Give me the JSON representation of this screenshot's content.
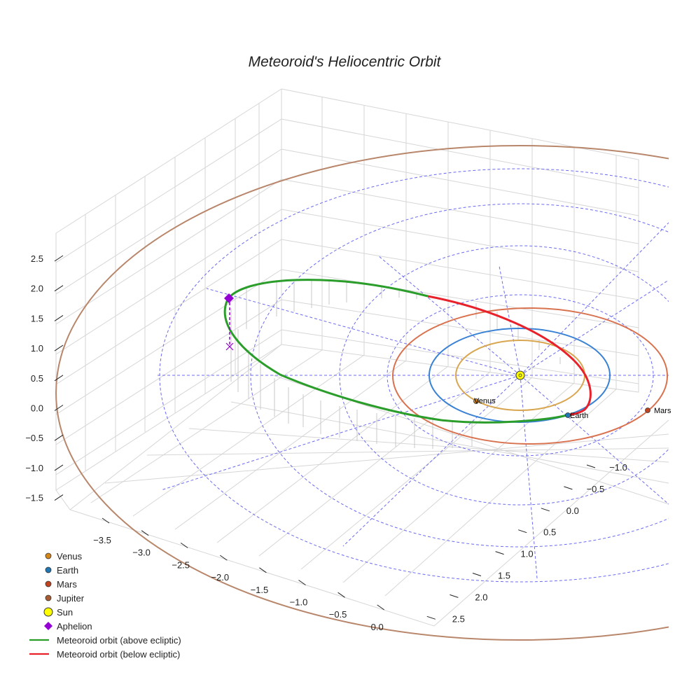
{
  "chart_data": {
    "type": "3d-orbit",
    "title": "Meteoroid's Heliocentric Orbit",
    "x_ticks": [
      "−3.5",
      "−3.0",
      "−2.5",
      "−2.0",
      "−1.5",
      "−1.0",
      "−0.5",
      "0.0"
    ],
    "y_ticks": [
      "−1.0",
      "−0.5",
      "0.0",
      "0.5",
      "1.0",
      "1.5",
      "2.0",
      "2.5"
    ],
    "z_ticks": [
      "2.5",
      "2.0",
      "1.5",
      "1.0",
      "0.5",
      "0.0",
      "−0.5",
      "−1.0",
      "−1.5"
    ],
    "planets": [
      {
        "name": "Venus",
        "orbit_radius_au": 0.72,
        "marker_color": "#d4861a",
        "orbit_color": "#d9a650",
        "label": "Venus"
      },
      {
        "name": "Earth",
        "orbit_radius_au": 1.0,
        "marker_color": "#1f77b4",
        "orbit_color": "#3a82d4",
        "label": "Earth"
      },
      {
        "name": "Mars",
        "orbit_radius_au": 1.52,
        "marker_color": "#c0441f",
        "orbit_color": "#d9724f",
        "label": "Mars"
      },
      {
        "name": "Jupiter",
        "orbit_radius_au": 5.2,
        "marker_color": "#a85c32",
        "orbit_color": "#b8866a",
        "label": ""
      }
    ],
    "sun": {
      "name": "Sun",
      "color": "#ffff00"
    },
    "aphelion": {
      "name": "Aphelion",
      "color": "#9400d3"
    },
    "series": [
      {
        "name": "Meteoroid orbit (above ecliptic)",
        "color": "#2a9d2a"
      },
      {
        "name": "Meteoroid orbit (below ecliptic)",
        "color": "#e8212b"
      }
    ],
    "ecliptic_grid": {
      "color": "#6b6bf0",
      "style": "dashed"
    }
  },
  "legend": {
    "items": [
      {
        "label": "Venus",
        "kind": "dot",
        "color": "#d4861a"
      },
      {
        "label": "Earth",
        "kind": "dot",
        "color": "#1f77b4"
      },
      {
        "label": "Mars",
        "kind": "dot",
        "color": "#c0441f"
      },
      {
        "label": "Jupiter",
        "kind": "dot",
        "color": "#a85c32"
      },
      {
        "label": "Sun",
        "kind": "sun",
        "color": "#ffff00"
      },
      {
        "label": "Aphelion",
        "kind": "diamond",
        "color": "#9400d3"
      },
      {
        "label": "Meteoroid orbit (above ecliptic)",
        "kind": "line",
        "color": "#2a9d2a"
      },
      {
        "label": "Meteoroid orbit (below ecliptic)",
        "kind": "line",
        "color": "#e8212b"
      }
    ]
  }
}
